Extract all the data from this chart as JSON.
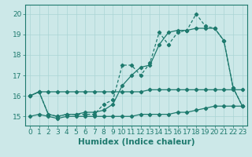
{
  "xlabel": "Humidex (Indice chaleur)",
  "bg_color": "#cce8e8",
  "grid_color": "#aad4d4",
  "line_color": "#1e7a6e",
  "x_ticks": [
    0,
    1,
    2,
    3,
    4,
    5,
    6,
    7,
    8,
    9,
    10,
    11,
    12,
    13,
    14,
    15,
    16,
    17,
    18,
    19,
    20,
    21,
    22,
    23
  ],
  "y_ticks": [
    15,
    16,
    17,
    18,
    19,
    20
  ],
  "ylim": [
    14.55,
    20.45
  ],
  "xlim": [
    -0.5,
    23.5
  ],
  "line1_x": [
    0,
    1,
    2,
    3,
    4,
    5,
    6,
    7,
    8,
    9,
    10,
    11,
    12,
    13,
    14,
    15,
    16,
    17,
    18,
    19,
    20,
    21,
    22,
    23
  ],
  "line1_y": [
    16.0,
    16.2,
    16.2,
    16.2,
    16.2,
    16.2,
    16.2,
    16.2,
    16.2,
    16.2,
    16.2,
    16.2,
    16.2,
    16.3,
    16.3,
    16.3,
    16.3,
    16.3,
    16.3,
    16.3,
    16.3,
    16.3,
    16.3,
    16.3
  ],
  "line2_x": [
    0,
    1,
    2,
    3,
    4,
    5,
    6,
    7,
    8,
    9,
    10,
    11,
    12,
    13,
    14,
    15,
    16,
    17,
    18,
    19,
    20,
    21,
    22,
    23
  ],
  "line2_y": [
    16.0,
    16.2,
    15.1,
    15.0,
    15.1,
    15.1,
    15.2,
    15.2,
    15.3,
    15.6,
    16.5,
    17.0,
    17.4,
    17.5,
    18.5,
    19.1,
    19.2,
    19.2,
    19.3,
    19.3,
    19.3,
    18.7,
    16.4,
    15.5
  ],
  "line3_x": [
    0,
    1,
    2,
    3,
    4,
    5,
    6,
    7,
    8,
    9,
    10,
    11,
    12,
    13,
    14,
    15,
    16,
    17,
    18,
    19,
    20,
    21,
    22,
    23
  ],
  "line3_y": [
    16.0,
    16.2,
    15.1,
    15.0,
    15.1,
    15.1,
    15.1,
    15.1,
    15.6,
    15.8,
    17.5,
    17.5,
    17.0,
    17.6,
    19.1,
    18.5,
    19.1,
    19.2,
    20.0,
    19.4,
    19.3,
    18.7,
    16.4,
    15.5
  ],
  "line4_x": [
    0,
    1,
    2,
    3,
    4,
    5,
    6,
    7,
    8,
    9,
    10,
    11,
    12,
    13,
    14,
    15,
    16,
    17,
    18,
    19,
    20,
    21,
    22,
    23
  ],
  "line4_y": [
    15.0,
    15.1,
    15.0,
    14.9,
    15.0,
    15.0,
    15.0,
    15.0,
    15.0,
    15.0,
    15.0,
    15.0,
    15.1,
    15.1,
    15.1,
    15.1,
    15.2,
    15.2,
    15.3,
    15.4,
    15.5,
    15.5,
    15.5,
    15.5
  ],
  "tick_fontsize": 6.5,
  "label_fontsize": 7.5
}
